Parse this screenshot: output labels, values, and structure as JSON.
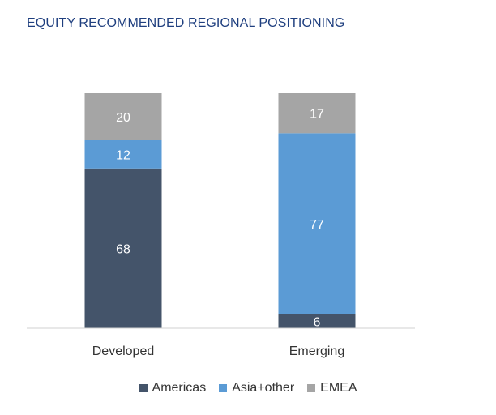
{
  "chart_data": {
    "type": "bar",
    "stacked": true,
    "title": "EQUITY RECOMMENDED REGIONAL POSITIONING",
    "categories": [
      "Developed",
      "Emerging"
    ],
    "series": [
      {
        "name": "Americas",
        "color": "#44546a",
        "values": [
          68,
          6
        ]
      },
      {
        "name": "Asia+other",
        "color": "#5b9bd5",
        "values": [
          12,
          77
        ]
      },
      {
        "name": "EMEA",
        "color": "#a5a5a5",
        "values": [
          20,
          17
        ]
      }
    ],
    "ylim": [
      0,
      100
    ],
    "grid": false,
    "legend_position": "bottom"
  }
}
